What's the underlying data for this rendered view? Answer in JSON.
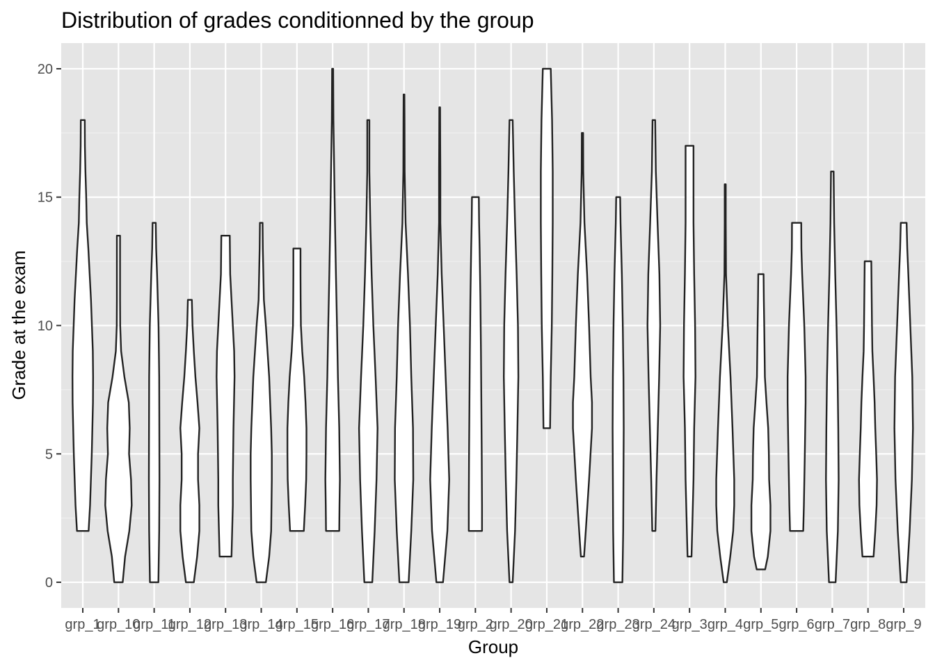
{
  "chart_data": {
    "type": "violin",
    "title": "Distribution of grades conditionned by the group",
    "xlabel": "Group",
    "ylabel": "Grade at the exam",
    "ylim": [
      -1,
      21
    ],
    "yticks": [
      0,
      5,
      10,
      15,
      20
    ],
    "grid": true,
    "background": "#e5e5e5",
    "categories": [
      "grp_1",
      "grp_10",
      "grp_11",
      "grp_12",
      "grp_13",
      "grp_14",
      "grp_15",
      "grp_16",
      "grp_17",
      "grp_18",
      "grp_19",
      "grp_2",
      "grp_20",
      "grp_21",
      "grp_22",
      "grp_23",
      "grp_24",
      "grp_3",
      "grp_4",
      "grp_5",
      "grp_6",
      "grp_7",
      "grp_8",
      "grp_9"
    ],
    "violins": [
      {
        "group": "grp_1",
        "min": 2,
        "max": 18,
        "widths": [
          [
            2,
            0.44
          ],
          [
            3,
            0.55
          ],
          [
            5,
            0.68
          ],
          [
            7,
            0.77
          ],
          [
            8,
            0.78
          ],
          [
            9,
            0.76
          ],
          [
            11,
            0.62
          ],
          [
            13,
            0.42
          ],
          [
            14,
            0.3
          ],
          [
            15,
            0.26
          ],
          [
            16,
            0.2
          ],
          [
            17,
            0.16
          ],
          [
            18,
            0.15
          ]
        ]
      },
      {
        "group": "grp_10",
        "min": 0,
        "max": 13.5,
        "widths": [
          [
            0,
            0.32
          ],
          [
            1,
            0.5
          ],
          [
            2,
            0.82
          ],
          [
            3,
            1.0
          ],
          [
            4,
            0.95
          ],
          [
            5,
            0.8
          ],
          [
            6,
            0.85
          ],
          [
            7,
            0.78
          ],
          [
            8,
            0.45
          ],
          [
            9,
            0.2
          ],
          [
            10,
            0.13
          ],
          [
            11,
            0.12
          ],
          [
            12,
            0.12
          ],
          [
            13.5,
            0.12
          ]
        ]
      },
      {
        "group": "grp_11",
        "min": 0,
        "max": 14,
        "widths": [
          [
            0,
            0.32
          ],
          [
            2,
            0.38
          ],
          [
            4,
            0.4
          ],
          [
            6,
            0.39
          ],
          [
            8,
            0.38
          ],
          [
            10,
            0.33
          ],
          [
            12,
            0.22
          ],
          [
            13,
            0.15
          ],
          [
            14,
            0.12
          ]
        ]
      },
      {
        "group": "grp_12",
        "min": 0,
        "max": 11,
        "widths": [
          [
            0,
            0.3
          ],
          [
            1,
            0.55
          ],
          [
            2,
            0.72
          ],
          [
            3,
            0.72
          ],
          [
            4,
            0.62
          ],
          [
            5,
            0.62
          ],
          [
            6,
            0.72
          ],
          [
            7,
            0.58
          ],
          [
            8,
            0.42
          ],
          [
            9,
            0.3
          ],
          [
            10,
            0.2
          ],
          [
            11,
            0.15
          ]
        ]
      },
      {
        "group": "grp_13",
        "min": 1,
        "max": 13.5,
        "widths": [
          [
            1,
            0.45
          ],
          [
            2,
            0.5
          ],
          [
            3,
            0.55
          ],
          [
            4,
            0.55
          ],
          [
            6,
            0.6
          ],
          [
            8,
            0.68
          ],
          [
            9,
            0.65
          ],
          [
            10,
            0.55
          ],
          [
            11,
            0.45
          ],
          [
            12,
            0.35
          ],
          [
            13.5,
            0.32
          ]
        ]
      },
      {
        "group": "grp_14",
        "min": 0,
        "max": 14,
        "widths": [
          [
            0,
            0.35
          ],
          [
            1,
            0.6
          ],
          [
            2,
            0.75
          ],
          [
            4,
            0.8
          ],
          [
            5,
            0.8
          ],
          [
            6,
            0.75
          ],
          [
            8,
            0.6
          ],
          [
            10,
            0.35
          ],
          [
            11,
            0.2
          ],
          [
            13,
            0.12
          ],
          [
            14,
            0.1
          ]
        ]
      },
      {
        "group": "grp_15",
        "min": 2,
        "max": 13,
        "widths": [
          [
            2,
            0.52
          ],
          [
            3,
            0.62
          ],
          [
            4,
            0.7
          ],
          [
            5,
            0.72
          ],
          [
            6,
            0.72
          ],
          [
            7,
            0.65
          ],
          [
            8,
            0.55
          ],
          [
            9,
            0.4
          ],
          [
            10,
            0.3
          ],
          [
            11,
            0.28
          ],
          [
            12,
            0.27
          ],
          [
            13,
            0.27
          ]
        ]
      },
      {
        "group": "grp_16",
        "min": 2,
        "max": 20,
        "widths": [
          [
            2,
            0.5
          ],
          [
            3,
            0.52
          ],
          [
            4,
            0.55
          ],
          [
            6,
            0.5
          ],
          [
            8,
            0.4
          ],
          [
            10,
            0.33
          ],
          [
            12,
            0.25
          ],
          [
            14,
            0.18
          ],
          [
            16,
            0.12
          ],
          [
            18,
            0.06
          ],
          [
            20,
            0.04
          ]
        ]
      },
      {
        "group": "grp_17",
        "min": 0,
        "max": 18,
        "widths": [
          [
            0,
            0.3
          ],
          [
            2,
            0.48
          ],
          [
            4,
            0.62
          ],
          [
            6,
            0.7
          ],
          [
            8,
            0.55
          ],
          [
            10,
            0.38
          ],
          [
            12,
            0.25
          ],
          [
            14,
            0.15
          ],
          [
            16,
            0.08
          ],
          [
            18,
            0.08
          ]
        ]
      },
      {
        "group": "grp_18",
        "min": 0,
        "max": 19,
        "widths": [
          [
            0,
            0.35
          ],
          [
            2,
            0.55
          ],
          [
            4,
            0.7
          ],
          [
            6,
            0.68
          ],
          [
            8,
            0.55
          ],
          [
            10,
            0.45
          ],
          [
            12,
            0.3
          ],
          [
            14,
            0.12
          ],
          [
            16,
            0.05
          ],
          [
            18,
            0.04
          ],
          [
            19,
            0.03
          ]
        ]
      },
      {
        "group": "grp_19",
        "min": 0,
        "max": 18.5,
        "widths": [
          [
            0,
            0.25
          ],
          [
            2,
            0.58
          ],
          [
            4,
            0.72
          ],
          [
            6,
            0.6
          ],
          [
            8,
            0.45
          ],
          [
            10,
            0.3
          ],
          [
            12,
            0.15
          ],
          [
            14,
            0.05
          ],
          [
            16,
            0.05
          ],
          [
            17,
            0.04
          ],
          [
            18.5,
            0.03
          ]
        ]
      },
      {
        "group": "grp_2",
        "min": 2,
        "max": 15,
        "widths": [
          [
            2,
            0.5
          ],
          [
            3,
            0.5
          ],
          [
            5,
            0.48
          ],
          [
            7,
            0.45
          ],
          [
            9,
            0.42
          ],
          [
            11,
            0.38
          ],
          [
            13,
            0.32
          ],
          [
            14,
            0.28
          ],
          [
            15,
            0.26
          ]
        ]
      },
      {
        "group": "grp_20",
        "min": 0,
        "max": 18,
        "widths": [
          [
            0,
            0.12
          ],
          [
            2,
            0.3
          ],
          [
            4,
            0.4
          ],
          [
            6,
            0.48
          ],
          [
            8,
            0.55
          ],
          [
            10,
            0.52
          ],
          [
            12,
            0.42
          ],
          [
            14,
            0.3
          ],
          [
            16,
            0.2
          ],
          [
            18,
            0.12
          ]
        ]
      },
      {
        "group": "grp_21",
        "min": 6,
        "max": 20,
        "widths": [
          [
            6,
            0.25
          ],
          [
            8,
            0.3
          ],
          [
            10,
            0.38
          ],
          [
            12,
            0.42
          ],
          [
            14,
            0.45
          ],
          [
            16,
            0.45
          ],
          [
            18,
            0.4
          ],
          [
            19,
            0.35
          ],
          [
            20,
            0.3
          ]
        ]
      },
      {
        "group": "grp_22",
        "min": 1,
        "max": 17.5,
        "widths": [
          [
            1,
            0.12
          ],
          [
            2,
            0.25
          ],
          [
            4,
            0.5
          ],
          [
            6,
            0.72
          ],
          [
            7,
            0.72
          ],
          [
            8,
            0.62
          ],
          [
            10,
            0.5
          ],
          [
            12,
            0.35
          ],
          [
            14,
            0.15
          ],
          [
            16,
            0.06
          ],
          [
            17.5,
            0.05
          ]
        ]
      },
      {
        "group": "grp_23",
        "min": 0,
        "max": 15,
        "widths": [
          [
            0,
            0.32
          ],
          [
            2,
            0.38
          ],
          [
            4,
            0.4
          ],
          [
            6,
            0.42
          ],
          [
            8,
            0.4
          ],
          [
            10,
            0.35
          ],
          [
            12,
            0.28
          ],
          [
            14,
            0.18
          ],
          [
            15,
            0.15
          ]
        ]
      },
      {
        "group": "grp_24",
        "min": 2,
        "max": 18,
        "widths": [
          [
            2,
            0.12
          ],
          [
            4,
            0.2
          ],
          [
            6,
            0.3
          ],
          [
            8,
            0.4
          ],
          [
            10,
            0.48
          ],
          [
            12,
            0.42
          ],
          [
            14,
            0.28
          ],
          [
            16,
            0.15
          ],
          [
            18,
            0.1
          ]
        ]
      },
      {
        "group": "grp_3",
        "min": 1,
        "max": 17,
        "widths": [
          [
            1,
            0.15
          ],
          [
            2,
            0.2
          ],
          [
            4,
            0.3
          ],
          [
            6,
            0.35
          ],
          [
            8,
            0.45
          ],
          [
            10,
            0.42
          ],
          [
            12,
            0.35
          ],
          [
            14,
            0.3
          ],
          [
            16,
            0.3
          ],
          [
            17,
            0.3
          ]
        ]
      },
      {
        "group": "grp_4",
        "min": 0,
        "max": 15.5,
        "widths": [
          [
            0,
            0.12
          ],
          [
            1,
            0.38
          ],
          [
            2,
            0.6
          ],
          [
            3,
            0.68
          ],
          [
            4,
            0.68
          ],
          [
            6,
            0.55
          ],
          [
            8,
            0.4
          ],
          [
            10,
            0.2
          ],
          [
            12,
            0.06
          ],
          [
            14,
            0.04
          ],
          [
            15.5,
            0.04
          ]
        ]
      },
      {
        "group": "grp_5",
        "min": 0.5,
        "max": 12,
        "widths": [
          [
            0.5,
            0.32
          ],
          [
            1,
            0.52
          ],
          [
            2,
            0.72
          ],
          [
            3,
            0.72
          ],
          [
            4,
            0.62
          ],
          [
            5,
            0.6
          ],
          [
            6,
            0.55
          ],
          [
            7,
            0.42
          ],
          [
            8,
            0.3
          ],
          [
            10,
            0.25
          ],
          [
            11,
            0.22
          ],
          [
            12,
            0.2
          ]
        ]
      },
      {
        "group": "grp_6",
        "min": 2,
        "max": 14,
        "widths": [
          [
            2,
            0.5
          ],
          [
            3,
            0.55
          ],
          [
            5,
            0.62
          ],
          [
            7,
            0.68
          ],
          [
            8,
            0.68
          ],
          [
            10,
            0.58
          ],
          [
            12,
            0.42
          ],
          [
            13,
            0.36
          ],
          [
            14,
            0.35
          ]
        ]
      },
      {
        "group": "grp_7",
        "min": 0,
        "max": 16,
        "widths": [
          [
            0,
            0.25
          ],
          [
            2,
            0.42
          ],
          [
            4,
            0.48
          ],
          [
            6,
            0.45
          ],
          [
            8,
            0.4
          ],
          [
            10,
            0.32
          ],
          [
            12,
            0.22
          ],
          [
            14,
            0.14
          ],
          [
            16,
            0.1
          ]
        ]
      },
      {
        "group": "grp_8",
        "min": 1,
        "max": 12.5,
        "widths": [
          [
            1,
            0.42
          ],
          [
            2,
            0.55
          ],
          [
            3,
            0.65
          ],
          [
            4,
            0.68
          ],
          [
            5,
            0.62
          ],
          [
            6,
            0.55
          ],
          [
            7,
            0.5
          ],
          [
            8,
            0.42
          ],
          [
            9,
            0.33
          ],
          [
            10,
            0.3
          ],
          [
            11,
            0.28
          ],
          [
            12.5,
            0.25
          ]
        ]
      },
      {
        "group": "grp_9",
        "min": 0,
        "max": 14,
        "widths": [
          [
            0,
            0.22
          ],
          [
            2,
            0.45
          ],
          [
            4,
            0.62
          ],
          [
            6,
            0.7
          ],
          [
            8,
            0.65
          ],
          [
            10,
            0.5
          ],
          [
            12,
            0.35
          ],
          [
            13,
            0.27
          ],
          [
            14,
            0.22
          ]
        ]
      }
    ]
  }
}
